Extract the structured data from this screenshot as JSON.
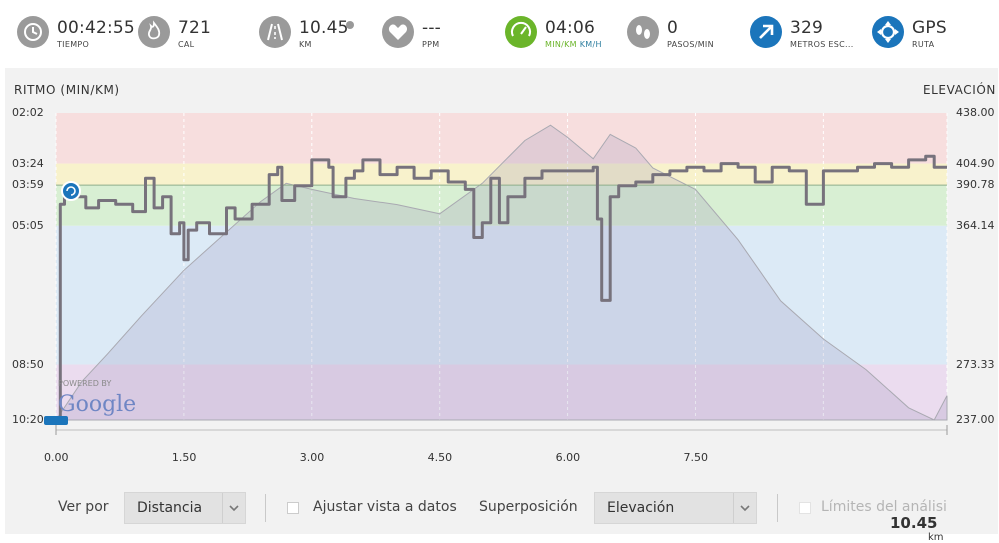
{
  "stats": [
    {
      "name": "time",
      "value": "00:42:55",
      "label": "TIEMPO",
      "icon": "clock-icon",
      "color": "#9a9a9a"
    },
    {
      "name": "calories",
      "value": "721",
      "label": "CAL",
      "icon": "flame-icon",
      "color": "#9a9a9a"
    },
    {
      "name": "distance",
      "value": "10.45",
      "label": "KM",
      "icon": "road-icon",
      "color": "#9a9a9a"
    },
    {
      "name": "heart-rate",
      "value": "---",
      "label": "PPM",
      "icon": "heart-icon",
      "color": "#9a9a9a"
    },
    {
      "name": "pace",
      "value": "04:06",
      "label_a": "MIN/KM",
      "label_b": "KM/H",
      "icon": "speedometer-icon",
      "color": "#6bb52a"
    },
    {
      "name": "cadence",
      "value": "0",
      "label": "PASOS/MIN",
      "icon": "footsteps-icon",
      "color": "#9a9a9a"
    },
    {
      "name": "ascent",
      "value": "329",
      "label": "METROS ESC...",
      "icon": "arrow-up-right-icon",
      "color": "#1b75bb"
    },
    {
      "name": "gps",
      "value": "GPS",
      "label": "RUTA",
      "icon": "gps-target-icon",
      "color": "#1b75bb"
    }
  ],
  "chart": {
    "left_title": "RITMO (MIN/KM)",
    "right_title": "ELEVACIÓN",
    "left_ticks": [
      "02:02",
      "03:24",
      "03:59",
      "05:05",
      "08:50",
      "10:20"
    ],
    "right_ticks": [
      "438.00",
      "404.90",
      "390.78",
      "364.14",
      "273.33",
      "237.00"
    ],
    "x_ticks": [
      "0.00",
      "1.50",
      "3.00",
      "4.50",
      "6.00",
      "7.50"
    ],
    "x_total": "10.45",
    "x_unit": "km",
    "powered_by": "POWERED BY",
    "google": "Google"
  },
  "chart_data": {
    "type": "line",
    "x_label": "km",
    "xlim": [
      0,
      10.45
    ],
    "series": [
      {
        "name": "Ritmo (min/km)",
        "axis": "left",
        "color": "#77727c",
        "x": [
          0.0,
          0.05,
          0.1,
          0.2,
          0.35,
          0.5,
          0.7,
          0.9,
          1.05,
          1.15,
          1.25,
          1.35,
          1.45,
          1.5,
          1.55,
          1.65,
          1.8,
          2.0,
          2.1,
          2.3,
          2.5,
          2.6,
          2.65,
          2.8,
          3.0,
          3.2,
          3.25,
          3.4,
          3.5,
          3.6,
          3.8,
          4.0,
          4.2,
          4.4,
          4.6,
          4.8,
          4.9,
          5.0,
          5.1,
          5.2,
          5.3,
          5.5,
          5.7,
          5.9,
          6.1,
          6.3,
          6.35,
          6.4,
          6.5,
          6.6,
          6.8,
          7.0,
          7.2,
          7.4,
          7.6,
          7.8,
          8.0,
          8.2,
          8.4,
          8.6,
          8.8,
          9.0,
          9.2,
          9.4,
          9.6,
          9.8,
          10.0,
          10.2,
          10.3,
          10.45
        ],
        "y": [
          10.3,
          4.5,
          4.2,
          4.3,
          4.6,
          4.4,
          4.5,
          4.7,
          3.8,
          4.6,
          4.3,
          5.3,
          5.0,
          6.0,
          5.2,
          5.0,
          5.3,
          4.6,
          4.9,
          4.5,
          3.7,
          3.5,
          4.4,
          4.0,
          3.3,
          3.5,
          4.3,
          3.8,
          3.6,
          3.3,
          3.7,
          3.5,
          3.8,
          3.6,
          3.9,
          4.1,
          5.4,
          5.0,
          3.8,
          5.0,
          4.3,
          3.8,
          3.6,
          3.6,
          3.6,
          3.5,
          4.9,
          7.1,
          4.3,
          4.0,
          3.9,
          3.7,
          3.6,
          3.5,
          3.6,
          3.4,
          3.5,
          3.9,
          3.5,
          3.6,
          4.5,
          3.6,
          3.6,
          3.5,
          3.4,
          3.5,
          3.3,
          3.2,
          3.5,
          3.5
        ]
      },
      {
        "name": "Elevación (m)",
        "axis": "right",
        "color": "#a9a9b1",
        "x": [
          0.0,
          0.3,
          0.6,
          1.0,
          1.5,
          2.0,
          2.4,
          2.7,
          3.0,
          3.5,
          4.0,
          4.5,
          5.0,
          5.5,
          5.8,
          6.0,
          6.3,
          6.5,
          6.8,
          7.0,
          7.5,
          8.0,
          8.5,
          9.0,
          9.5,
          10.0,
          10.3,
          10.45
        ],
        "y": [
          237,
          262,
          280,
          305,
          335,
          360,
          380,
          392,
          388,
          382,
          378,
          372,
          392,
          420,
          430,
          422,
          408,
          424,
          415,
          402,
          388,
          355,
          315,
          290,
          270,
          245,
          237,
          253
        ]
      }
    ],
    "left_axis": {
      "label": "RITMO (MIN/KM)",
      "ticks": [
        "02:02",
        "03:24",
        "03:59",
        "05:05",
        "08:50",
        "10:20"
      ],
      "inverted": true
    },
    "right_axis": {
      "label": "ELEVACIÓN",
      "ticks": [
        438.0,
        404.9,
        390.78,
        364.14,
        273.33,
        237.0
      ]
    },
    "pace_zones": [
      {
        "from": "02:02",
        "to": "03:24",
        "color": "#f7dede"
      },
      {
        "from": "03:24",
        "to": "03:59",
        "color": "#f8f2cc"
      },
      {
        "from": "03:59",
        "to": "05:05",
        "color": "#d8efd3"
      },
      {
        "from": "05:05",
        "to": "08:50",
        "color": "#dceaf6"
      },
      {
        "from": "08:50",
        "to": "10:20",
        "color": "#ebdcef"
      }
    ]
  },
  "controls": {
    "view_by_label": "Ver por",
    "view_by_value": "Distancia",
    "fit_label": "Ajustar vista a datos",
    "overlay_label": "Superposición",
    "overlay_value": "Elevación",
    "analysis_label": "Límites del análisi"
  }
}
